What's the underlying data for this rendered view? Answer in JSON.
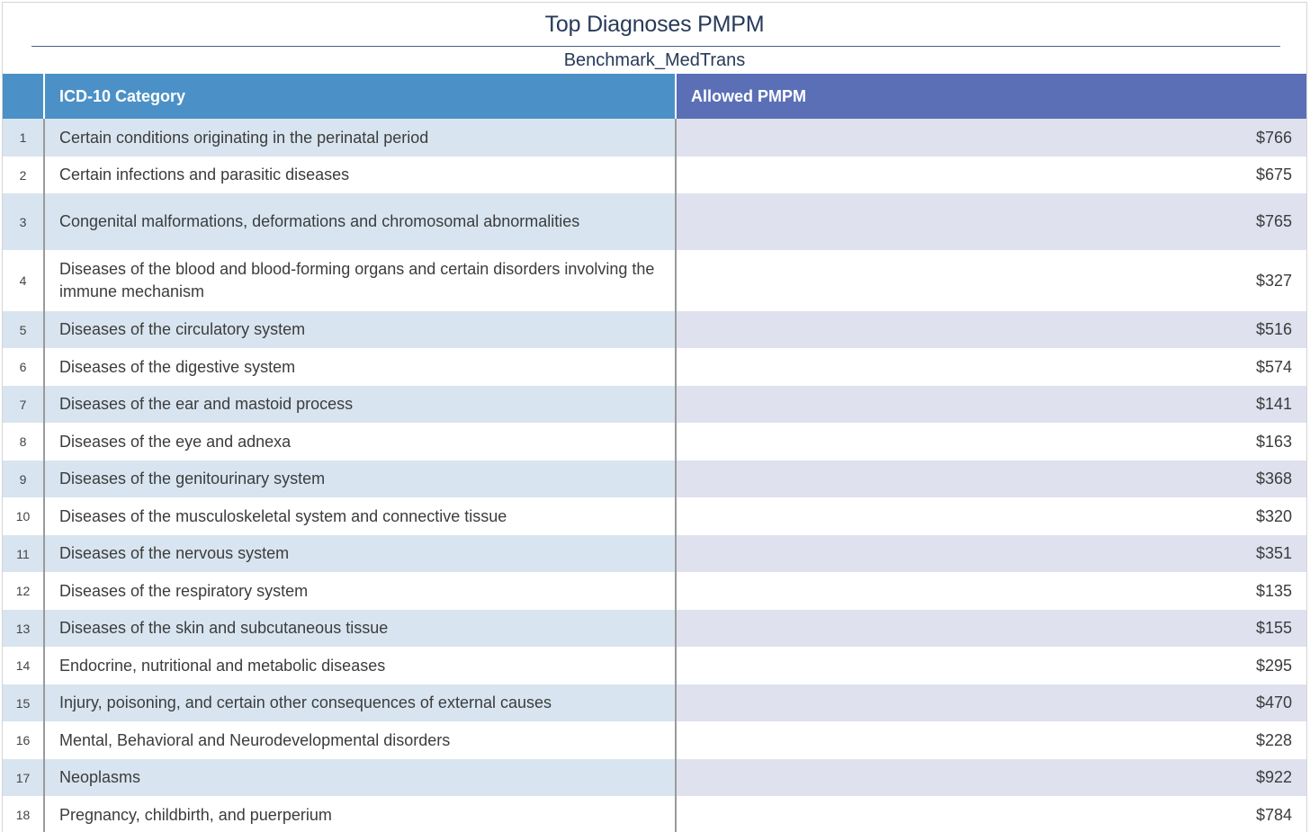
{
  "title": "Top Diagnoses PMPM",
  "subtitle": "Benchmark_MedTrans",
  "colors": {
    "header_category": "#4b91c7",
    "header_value": "#5b6fb7",
    "title": "#283a5a"
  },
  "columns": {
    "category": "ICD-10 Category",
    "value": "Allowed PMPM"
  },
  "rows": [
    {
      "idx": "1",
      "category": "Certain conditions originating in the perinatal period",
      "value": "$766"
    },
    {
      "idx": "2",
      "category": "Certain infections and parasitic diseases",
      "value": "$675"
    },
    {
      "idx": "3",
      "category": "Congenital malformations, deformations and chromosomal abnormalities",
      "value": "$765"
    },
    {
      "idx": "4",
      "category": "Diseases of the blood and blood-forming organs and certain disorders involving the immune mechanism",
      "value": "$327"
    },
    {
      "idx": "5",
      "category": "Diseases of the circulatory system",
      "value": "$516"
    },
    {
      "idx": "6",
      "category": "Diseases of the digestive system",
      "value": "$574"
    },
    {
      "idx": "7",
      "category": "Diseases of the ear and mastoid process",
      "value": "$141"
    },
    {
      "idx": "8",
      "category": "Diseases of the eye and adnexa",
      "value": "$163"
    },
    {
      "idx": "9",
      "category": "Diseases of the genitourinary system",
      "value": "$368"
    },
    {
      "idx": "10",
      "category": "Diseases of the musculoskeletal system and connective tissue",
      "value": "$320"
    },
    {
      "idx": "11",
      "category": "Diseases of the nervous system",
      "value": "$351"
    },
    {
      "idx": "12",
      "category": "Diseases of the respiratory system",
      "value": "$135"
    },
    {
      "idx": "13",
      "category": "Diseases of the skin and subcutaneous tissue",
      "value": "$155"
    },
    {
      "idx": "14",
      "category": "Endocrine, nutritional and metabolic diseases",
      "value": "$295"
    },
    {
      "idx": "15",
      "category": "Injury, poisoning, and certain other consequences of external causes",
      "value": "$470"
    },
    {
      "idx": "16",
      "category": "Mental, Behavioral and Neurodevelopmental disorders",
      "value": "$228"
    },
    {
      "idx": "17",
      "category": "Neoplasms",
      "value": "$922"
    },
    {
      "idx": "18",
      "category": "Pregnancy, childbirth, and puerperium",
      "value": "$784"
    }
  ]
}
